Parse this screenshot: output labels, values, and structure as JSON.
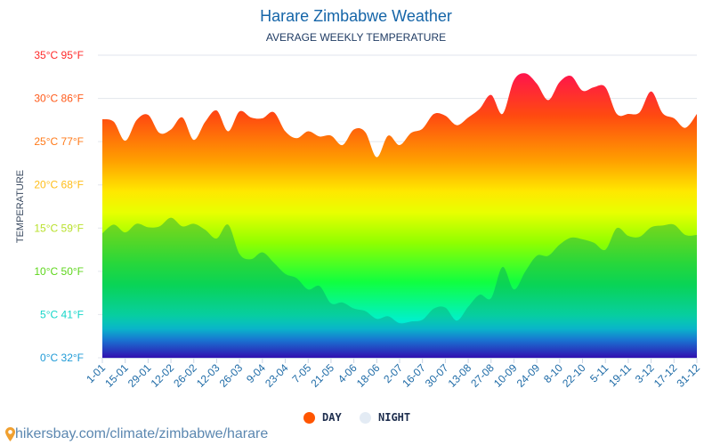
{
  "chart_data": {
    "type": "area",
    "title": "Harare Zimbabwe Weather",
    "subtitle": "AVERAGE WEEKLY TEMPERATURE",
    "ylabel": "TEMPERATURE",
    "ylim": [
      0,
      35
    ],
    "yticks": [
      {
        "value": 0,
        "label": "0°C 32°F",
        "color": "#1e9ad6"
      },
      {
        "value": 5,
        "label": "5°C 41°F",
        "color": "#16d6c8"
      },
      {
        "value": 10,
        "label": "10°C 50°F",
        "color": "#5ed61c"
      },
      {
        "value": 15,
        "label": "15°C 59°F",
        "color": "#b8e02a"
      },
      {
        "value": 20,
        "label": "20°C 68°F",
        "color": "#ffbe1a"
      },
      {
        "value": 25,
        "label": "25°C 77°F",
        "color": "#ff7a1a"
      },
      {
        "value": 30,
        "label": "30°C 86°F",
        "color": "#ff5a1a"
      },
      {
        "value": 35,
        "label": "35°C 95°F",
        "color": "#ff2a2a"
      }
    ],
    "xticklabels": [
      "1-01",
      "15-01",
      "29-01",
      "12-02",
      "26-02",
      "12-03",
      "26-03",
      "9-04",
      "23-04",
      "7-05",
      "21-05",
      "4-06",
      "18-06",
      "2-07",
      "16-07",
      "30-07",
      "13-08",
      "27-08",
      "10-09",
      "24-09",
      "8-10",
      "22-10",
      "5-11",
      "19-11",
      "3-12",
      "17-12",
      "31-12"
    ],
    "grid": true,
    "legend_position": "bottom",
    "series": [
      {
        "name": "DAY",
        "color": "#ff5500",
        "values": [
          27.6,
          27.3,
          25.1,
          27.5,
          28.1,
          26.0,
          26.4,
          27.8,
          25.2,
          27.3,
          28.6,
          26.2,
          28.5,
          27.8,
          27.7,
          28.4,
          26.2,
          25.4,
          26.2,
          25.6,
          25.7,
          24.6,
          26.4,
          26.1,
          23.2,
          25.7,
          24.6,
          26.0,
          26.5,
          28.2,
          28.0,
          26.9,
          27.8,
          28.8,
          30.4,
          28.2,
          32.1,
          32.9,
          31.7,
          29.8,
          31.9,
          32.6,
          30.9,
          31.3,
          31.3,
          28.2,
          28.2,
          28.4,
          30.8,
          28.3,
          27.7,
          26.6,
          28.2
        ]
      },
      {
        "name": "NIGHT",
        "color": "#dfe8f2",
        "values": [
          14.4,
          15.4,
          14.5,
          15.5,
          15.1,
          15.2,
          16.2,
          15.2,
          15.5,
          14.8,
          13.8,
          15.4,
          12.0,
          11.4,
          12.2,
          11.0,
          9.7,
          9.2,
          7.9,
          8.3,
          6.3,
          6.4,
          5.7,
          5.4,
          4.5,
          4.8,
          4.0,
          4.2,
          4.4,
          5.7,
          5.8,
          4.3,
          5.9,
          7.3,
          6.9,
          10.5,
          7.9,
          10.0,
          11.8,
          11.8,
          13.1,
          13.9,
          13.7,
          13.3,
          12.5,
          15.0,
          14.1,
          14.0,
          15.1,
          15.3,
          15.4,
          14.2,
          14.2
        ]
      }
    ]
  },
  "footer": {
    "text": "hikersbay.com/climate/zimbabwe/harare",
    "icon": "map-pin-icon"
  }
}
